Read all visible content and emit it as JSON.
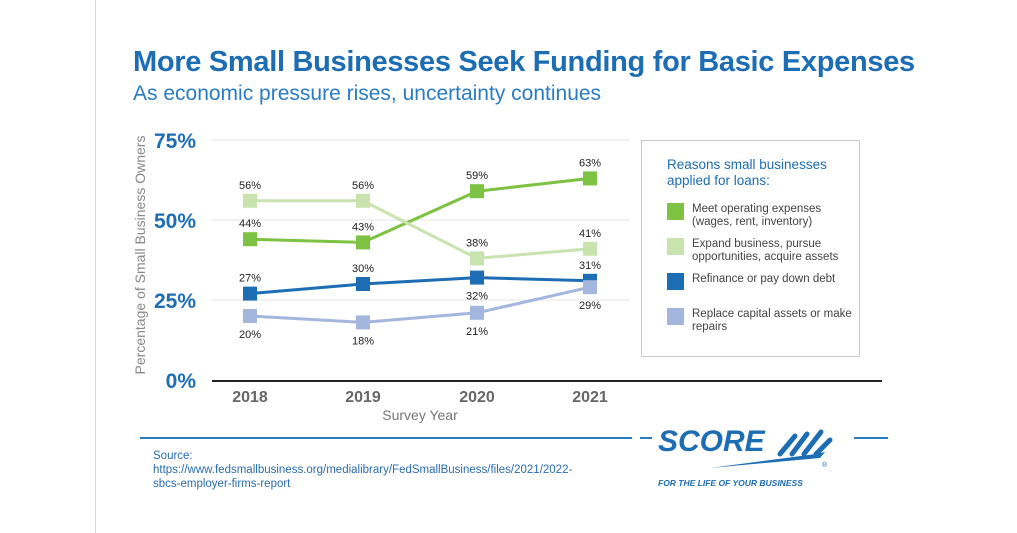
{
  "title": "More Small Businesses Seek Funding for Basic Expenses",
  "subtitle": "As economic pressure rises, uncertainty continues",
  "chart_data": {
    "type": "line",
    "xlabel": "Survey Year",
    "ylabel": "Percentage of Small Business Owners",
    "categories": [
      "2018",
      "2019",
      "2020",
      "2021"
    ],
    "ylim": [
      0,
      75
    ],
    "yticks": [
      "0%",
      "25%",
      "50%",
      "75%"
    ],
    "grid": true,
    "legend_title": "Reasons small businesses applied for loans:",
    "legend_placement": "right",
    "series": [
      {
        "name": "Meet operating expenses (wages, rent, inventory)",
        "color": "#7dc242",
        "values": [
          44,
          43,
          59,
          63
        ],
        "labels": [
          "44%",
          "43%",
          "59%",
          "63%"
        ],
        "label_pos": [
          "above",
          "above",
          "above",
          "above"
        ]
      },
      {
        "name": "Expand business, pursue opportunities, acquire assets",
        "color": "#c9e3ae",
        "values": [
          56,
          56,
          38,
          41
        ],
        "labels": [
          "56%",
          "56%",
          "38%",
          "41%"
        ],
        "label_pos": [
          "above",
          "above",
          "above",
          "above"
        ]
      },
      {
        "name": "Refinance or pay down debt",
        "color": "#1d6db4",
        "values": [
          27,
          30,
          32,
          31
        ],
        "labels": [
          "27%",
          "30%",
          "32%",
          "31%"
        ],
        "label_pos": [
          "above",
          "above",
          "below",
          "above"
        ]
      },
      {
        "name": "Replace capital assets or make repairs",
        "color": "#a3b6de",
        "values": [
          20,
          18,
          21,
          29
        ],
        "labels": [
          "20%",
          "18%",
          "21%",
          "29%"
        ],
        "label_pos": [
          "below",
          "below",
          "below",
          "below"
        ]
      }
    ]
  },
  "source": "Source: https://www.fedsmallbusiness.org/medialibrary/FedSmallBusiness/files/2021/2022-sbcs-employer-firms-report",
  "logo": {
    "text": "SCORE",
    "tagline": "FOR THE LIFE OF YOUR BUSINESS"
  }
}
